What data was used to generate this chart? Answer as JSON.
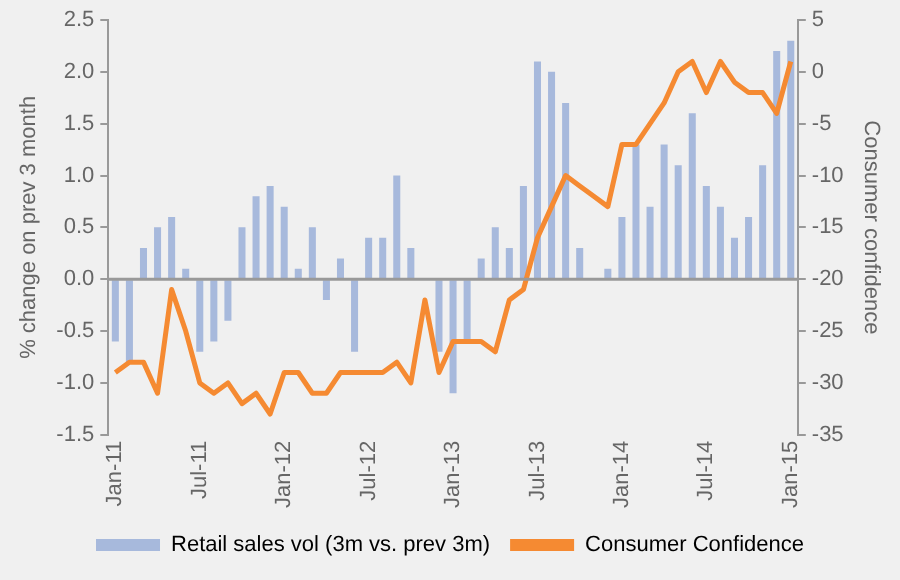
{
  "chart_data": {
    "type": "bar",
    "ylabel": "% change on prev 3 month",
    "y2label": "Consumer confidence",
    "categories": [
      "Jan-11",
      null,
      null,
      null,
      null,
      null,
      "Jul-11",
      null,
      null,
      null,
      null,
      null,
      "Jan-12",
      null,
      null,
      null,
      null,
      null,
      "Jul-12",
      null,
      null,
      null,
      null,
      null,
      "Jan-13",
      null,
      null,
      null,
      null,
      null,
      "Jul-13",
      null,
      null,
      null,
      null,
      null,
      "Jan-14",
      null,
      null,
      null,
      null,
      null,
      "Jul-14",
      null,
      null,
      null,
      null,
      null,
      "Jan-15"
    ],
    "series": [
      {
        "name": "Retail sales vol (3m vs. prev 3m)",
        "color": "#a7b9dc",
        "values": [
          -0.6,
          -0.8,
          0.3,
          0.5,
          0.6,
          0.1,
          -0.7,
          -0.6,
          -0.4,
          0.5,
          0.8,
          0.9,
          0.7,
          0.1,
          0.5,
          -0.2,
          0.2,
          -0.7,
          0.4,
          0.4,
          1.0,
          0.3,
          0,
          -0.7,
          -1.1,
          -0.6,
          0.2,
          0.5,
          0.3,
          0.9,
          2.1,
          2.0,
          1.7,
          0.3,
          0,
          0.1,
          0.6,
          1.3,
          0.7,
          1.3,
          1.1,
          1.6,
          0.9,
          0.7,
          0.4,
          0.6,
          1.1,
          2.2,
          2.3
        ]
      },
      {
        "name": "Consumer Confidence",
        "type": "line",
        "axis": "y2",
        "color": "#f58a32",
        "values": [
          -29,
          -28,
          -28,
          -31,
          -21,
          -25,
          -30,
          -31,
          -30,
          -32,
          -31,
          -33,
          -29,
          -29,
          -31,
          -31,
          -29,
          -29,
          -29,
          -29,
          -28,
          -30,
          -22,
          -29,
          -26,
          -26,
          -26,
          -27,
          -22,
          -21,
          -16,
          -13,
          -10,
          -11,
          -12,
          -13,
          -7,
          -7,
          -5,
          -3,
          0,
          1,
          -2,
          1,
          -1,
          -2,
          -2,
          -4,
          1
        ]
      }
    ],
    "ylim": [
      -1.5,
      2.5
    ],
    "yticks": [
      -1.5,
      {
        "value": -1,
        "label": "-1.0"
      },
      -0.5,
      {
        "value": 0,
        "label": "0.0"
      },
      0.5,
      {
        "value": 1,
        "label": "1.0"
      },
      1.5,
      {
        "value": 2,
        "label": "2.0"
      },
      2.5
    ],
    "ref_lines": [
      {
        "axis": "y",
        "value": 0
      }
    ],
    "y2lim": [
      -35,
      5
    ],
    "y2ticks": [
      -35,
      -30,
      -25,
      -20,
      -15,
      -10,
      -5,
      0,
      5
    ],
    "grid": false,
    "legend": "bottom",
    "marker": "none"
  }
}
